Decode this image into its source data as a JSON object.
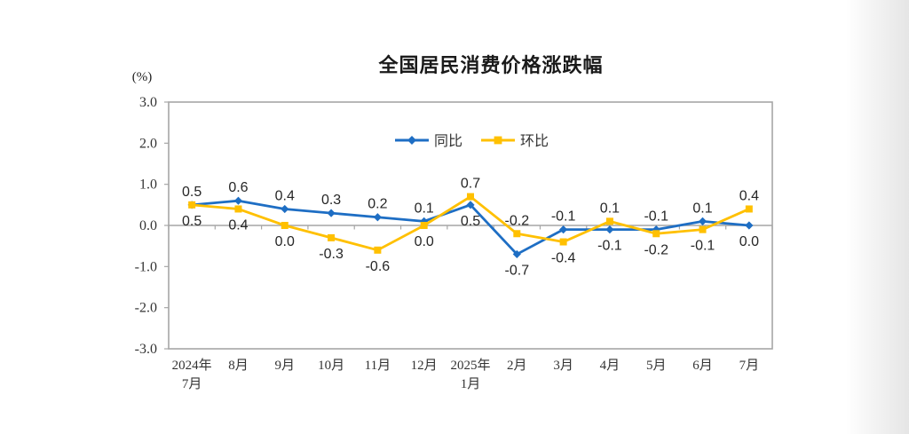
{
  "chart_data": {
    "type": "line",
    "title": "全国居民消费价格涨跌幅",
    "unit_label": "(%)",
    "categories": [
      [
        "2024年",
        "7月"
      ],
      [
        "8月"
      ],
      [
        "9月"
      ],
      [
        "10月"
      ],
      [
        "11月"
      ],
      [
        "12月"
      ],
      [
        "2025年",
        "1月"
      ],
      [
        "2月"
      ],
      [
        "3月"
      ],
      [
        "4月"
      ],
      [
        "5月"
      ],
      [
        "6月"
      ],
      [
        "7月"
      ]
    ],
    "series": [
      {
        "id": "yoy",
        "name": "同比",
        "color": "#1E6EC4",
        "marker": "diamond",
        "values": [
          0.5,
          0.6,
          0.4,
          0.3,
          0.2,
          0.1,
          0.5,
          -0.7,
          -0.1,
          -0.1,
          -0.1,
          0.1,
          0.0
        ]
      },
      {
        "id": "mom",
        "name": "环比",
        "color": "#FFC000",
        "marker": "square",
        "values": [
          0.5,
          0.4,
          0.0,
          -0.3,
          -0.6,
          0.0,
          0.7,
          -0.2,
          -0.4,
          0.1,
          -0.2,
          -0.1,
          0.4
        ]
      }
    ],
    "y_ticks": [
      "3.0",
      "2.0",
      "1.0",
      "0.0",
      "-1.0",
      "-2.0",
      "-3.0"
    ],
    "ylim": [
      -3.0,
      3.0
    ],
    "grid": false,
    "legend_position": "inside-top-center",
    "style": {
      "axis_color": "#A6A6A6",
      "tick_text_color": "#333333",
      "data_label_color": "#262626",
      "legend_text_color": "#333333",
      "background": "#ffffff"
    }
  }
}
